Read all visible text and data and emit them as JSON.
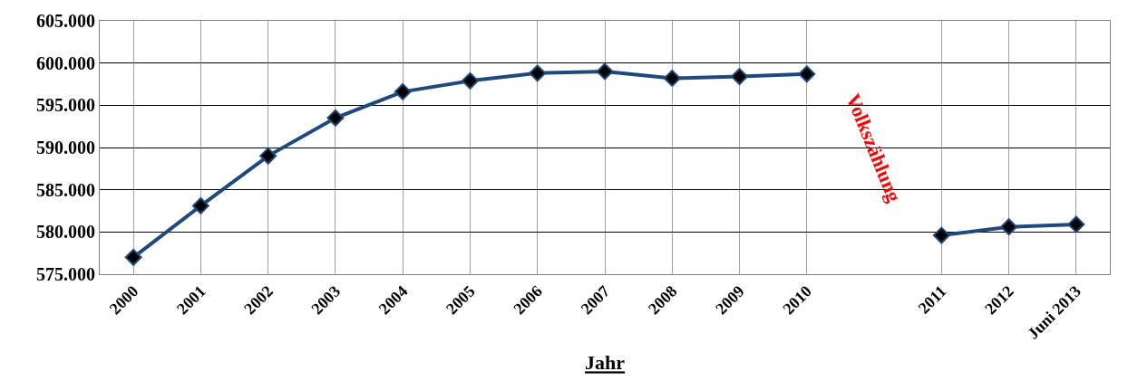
{
  "chart_data": {
    "type": "line",
    "xlabel": "Jahr",
    "categories": [
      "2000",
      "2001",
      "2002",
      "2003",
      "2004",
      "2005",
      "2006",
      "2007",
      "2008",
      "2009",
      "2010",
      null,
      "2011",
      "2012",
      "Juni 2013"
    ],
    "series": [
      {
        "color": "#1f497d",
        "values": [
          577000,
          583100,
          589000,
          593500,
          596600,
          597900,
          598800,
          599000,
          598200,
          598400,
          598700,
          null,
          579600,
          580600,
          580900
        ]
      }
    ],
    "ylim": [
      575000,
      605000
    ],
    "yticks": [
      {
        "value": 575000,
        "label": "575.000"
      },
      {
        "value": 580000,
        "label": "580.000"
      },
      {
        "value": 585000,
        "label": "585.000"
      },
      {
        "value": 590000,
        "label": "590.000"
      },
      {
        "value": 595000,
        "label": "595.000"
      },
      {
        "value": 600000,
        "label": "600.000"
      },
      {
        "value": 605000,
        "label": "605.000"
      }
    ],
    "annotations": [
      "Volkszählung"
    ],
    "grid": true,
    "marker": "diamond",
    "line_style": "solid"
  }
}
